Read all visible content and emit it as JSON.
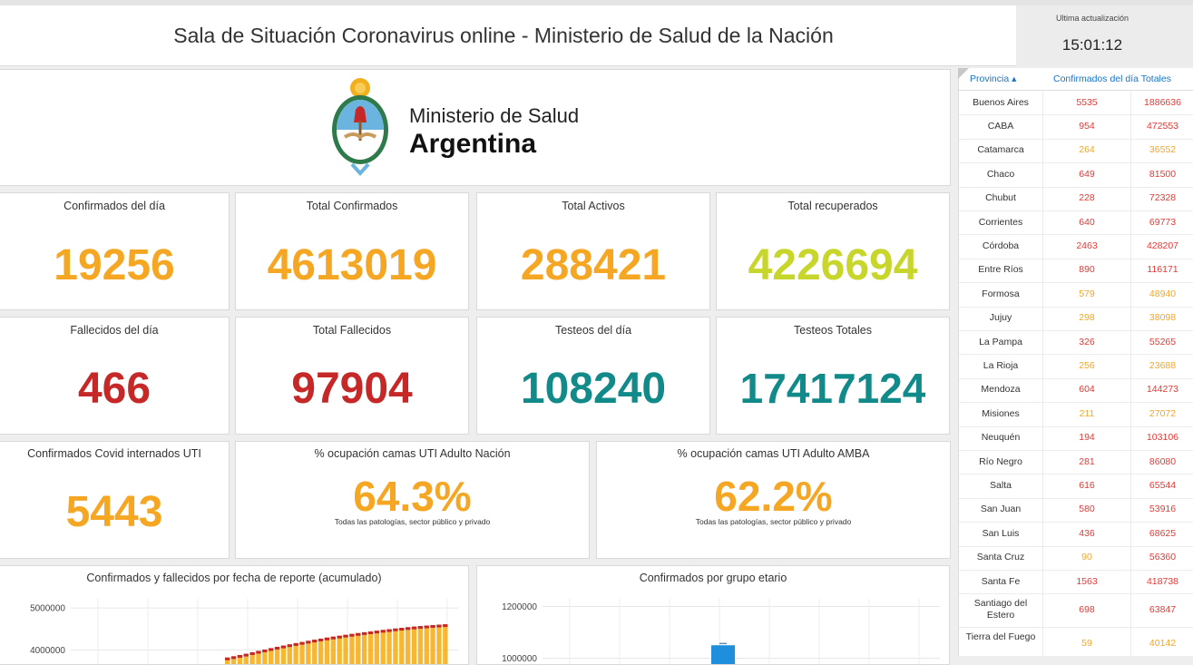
{
  "header": {
    "title": "Sala de Situación Coronavirus online - Ministerio de Salud de la Nación"
  },
  "last_update": {
    "label": "Ultima actualización",
    "time": "15:01:12"
  },
  "logo": {
    "line1": "Ministerio de Salud",
    "line2": "Argentina"
  },
  "kpis": {
    "confirmados_dia": {
      "label": "Confirmados del día",
      "value": "19256",
      "color": "#f5a623"
    },
    "total_confirmados": {
      "label": "Total Confirmados",
      "value": "4613019",
      "color": "#f5a623"
    },
    "total_activos": {
      "label": "Total Activos",
      "value": "288421",
      "color": "#f5a623"
    },
    "total_recuperados": {
      "label": "Total recuperados",
      "value": "4226694",
      "color": "#c8d62b"
    },
    "fallecidos_dia": {
      "label": "Fallecidos del día",
      "value": "466",
      "color": "#c62828"
    },
    "total_fallecidos": {
      "label": "Total Fallecidos",
      "value": "97904",
      "color": "#c62828"
    },
    "testeos_dia": {
      "label": "Testeos del día",
      "value": "108240",
      "color": "#138a8a"
    },
    "testeos_totales": {
      "label": "Testeos Totales",
      "value": "17417124",
      "color": "#138a8a"
    },
    "internados_uti": {
      "label": "Confirmados Covid internados UTI",
      "value": "5443",
      "color": "#f5a623"
    },
    "ocupacion_nacion": {
      "label": "% ocupación camas UTI Adulto Nación",
      "value": "64.3%",
      "sub": "Todas las patologías, sector público y privado",
      "color": "#f5a623"
    },
    "ocupacion_amba": {
      "label": "% ocupación camas UTI Adulto AMBA",
      "value": "62.2%",
      "sub": "Todas las patologías, sector público y privado",
      "color": "#f5a623"
    }
  },
  "chart_data": [
    {
      "type": "bar",
      "title": "Confirmados y fallecidos por fecha de reporte (acumulado)",
      "ytick_labels": [
        "5000000",
        "4000000"
      ],
      "y_ticks": [
        5000000,
        4000000
      ],
      "ylim": [
        3620000,
        5220000
      ],
      "series": [
        {
          "values": [
            3820000,
            3850000,
            3880000,
            3910000,
            3945000,
            3978000,
            4010000,
            4043000,
            4075000,
            4105000,
            4135000,
            4163000,
            4190000,
            4218000,
            4245000,
            4270000,
            4295000,
            4318000,
            4340000,
            4362000,
            4383000,
            4403000,
            4423000,
            4442000,
            4460000,
            4478000,
            4495000,
            4512000,
            4528000,
            4543000,
            4557000,
            4570000,
            4582000,
            4593000,
            4603000,
            4613019
          ]
        }
      ],
      "colors": {
        "bar": "#f7b733",
        "top": "#c62828"
      },
      "grid": true
    },
    {
      "type": "bar",
      "title": "Confirmados por grupo etario",
      "ytick_labels": [
        "1200000",
        "1000000"
      ],
      "y_ticks": [
        1200000,
        1000000
      ],
      "ylim": [
        970000,
        1230000
      ],
      "series": [
        {
          "values": [
            1050000
          ]
        }
      ],
      "colors": {
        "bar": "#1f8fdd"
      },
      "grid": true
    }
  ],
  "table": {
    "columns": [
      "Provincia ▴",
      "Confirmados del día Totales"
    ],
    "rows": [
      {
        "prov": "Buenos Aires",
        "day": "5535",
        "total": "1886636",
        "color": "#e53935"
      },
      {
        "prov": "CABA",
        "day": "954",
        "total": "472553",
        "color": "#e53935"
      },
      {
        "prov": "Catamarca",
        "day": "264",
        "total": "36552",
        "color": "#f5a623"
      },
      {
        "prov": "Chaco",
        "day": "649",
        "total": "81500",
        "color": "#e53935"
      },
      {
        "prov": "Chubut",
        "day": "228",
        "total": "72328",
        "color": "#e53935"
      },
      {
        "prov": "Corrientes",
        "day": "640",
        "total": "69773",
        "color": "#e53935"
      },
      {
        "prov": "Córdoba",
        "day": "2463",
        "total": "428207",
        "color": "#e53935"
      },
      {
        "prov": "Entre Ríos",
        "day": "890",
        "total": "116171",
        "color": "#e53935"
      },
      {
        "prov": "Formosa",
        "day": "579",
        "total": "48940",
        "color": "#f5a623"
      },
      {
        "prov": "Jujuy",
        "day": "298",
        "total": "38098",
        "color": "#f5a623"
      },
      {
        "prov": "La Pampa",
        "day": "326",
        "total": "55265",
        "color": "#e53935"
      },
      {
        "prov": "La Rioja",
        "day": "256",
        "total": "23688",
        "color": "#f5a623"
      },
      {
        "prov": "Mendoza",
        "day": "604",
        "total": "144273",
        "color": "#e53935"
      },
      {
        "prov": "Misiones",
        "day": "211",
        "total": "27072",
        "color": "#f5a623"
      },
      {
        "prov": "Neuquén",
        "day": "194",
        "total": "103106",
        "color": "#e53935"
      },
      {
        "prov": "Río Negro",
        "day": "281",
        "total": "86080",
        "color": "#e53935"
      },
      {
        "prov": "Salta",
        "day": "616",
        "total": "65544",
        "color": "#e53935"
      },
      {
        "prov": "San Juan",
        "day": "580",
        "total": "53916",
        "color": "#e53935"
      },
      {
        "prov": "San Luis",
        "day": "436",
        "total": "68625",
        "color": "#e53935"
      },
      {
        "prov": "Santa Cruz",
        "day": "90",
        "total": "56360",
        "color": "#e53935",
        "day_color": "#f5a623"
      },
      {
        "prov": "Santa Fe",
        "day": "1563",
        "total": "418738",
        "color": "#e53935"
      },
      {
        "prov": "Santiago del Estero",
        "day": "698",
        "total": "63847",
        "color": "#e53935"
      },
      {
        "prov": "Tierra del Fuego",
        "day": "59",
        "total": "40142",
        "color": "#f5a623"
      }
    ]
  }
}
